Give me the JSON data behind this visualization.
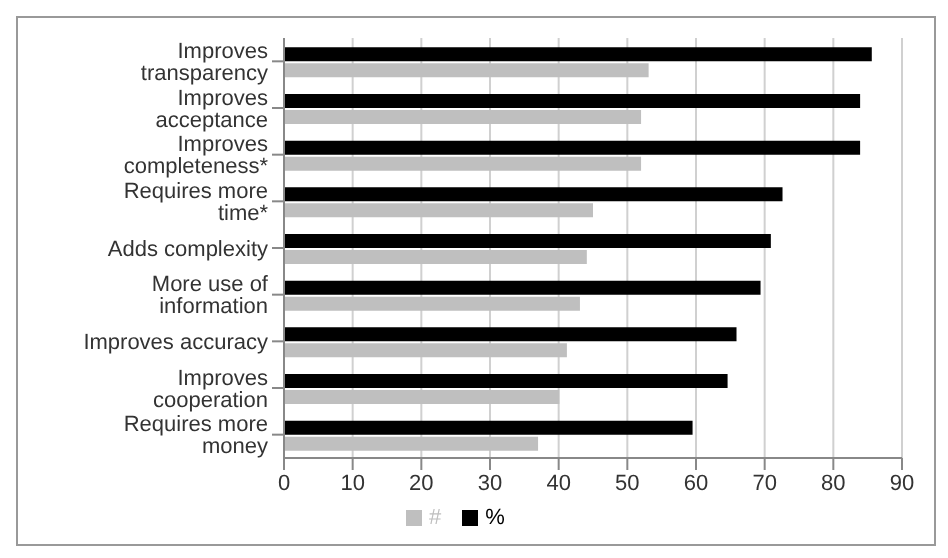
{
  "chart_data": {
    "type": "bar",
    "orientation": "horizontal",
    "categories": [
      "Improves transparency",
      "Improves acceptance",
      "Improves completeness*",
      "Requires more time*",
      "Adds complexity",
      "More use of information",
      "Improves accuracy",
      "Improves cooperation",
      "Requires more money"
    ],
    "series": [
      {
        "name": "%",
        "color": "#000000",
        "values": [
          85.6,
          83.9,
          83.9,
          72.6,
          70.9,
          69.4,
          65.9,
          64.6,
          59.5
        ]
      },
      {
        "name": "#",
        "color": "#bfbfbf",
        "values": [
          53.1,
          52,
          52,
          45,
          44.1,
          43.1,
          41.2,
          40.1,
          37
        ]
      }
    ],
    "xlim": [
      0,
      90
    ],
    "xticks": [
      0,
      10,
      20,
      30,
      40,
      50,
      60,
      70,
      80,
      90
    ],
    "grid": "x",
    "legend": "bottom"
  }
}
